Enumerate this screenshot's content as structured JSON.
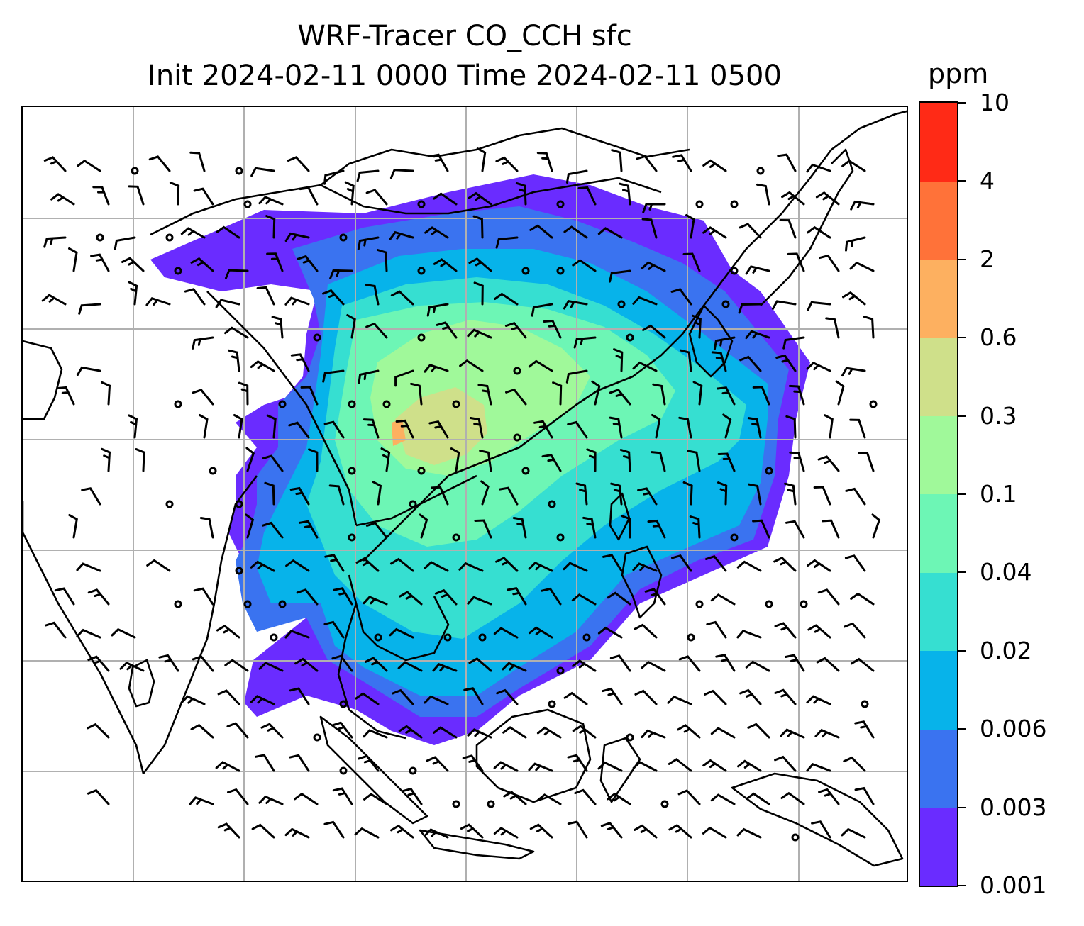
{
  "title": {
    "line1": "WRF-Tracer CO_CCH sfc",
    "line2": "Init 2024-02-11 0000 Time 2024-02-11 0500"
  },
  "colorbar": {
    "unit": "ppm",
    "levels": [
      "0.001",
      "0.003",
      "0.006",
      "0.02",
      "0.04",
      "0.1",
      "0.3",
      "0.6",
      "2",
      "4",
      "10"
    ],
    "colors": [
      "#6a2cff",
      "#3a73f0",
      "#07b3ea",
      "#36dfd1",
      "#6df6b5",
      "#a0f99a",
      "#cfe08a",
      "#fdb060",
      "#ff7239",
      "#ff2a16"
    ]
  },
  "map": {
    "layers": [
      "CO_CCH tracer concentration (filled contours)",
      "wind barbs",
      "coastlines",
      "country borders",
      "lat/lon gridlines"
    ],
    "gridlines": true,
    "calm_marker": "circle"
  }
}
